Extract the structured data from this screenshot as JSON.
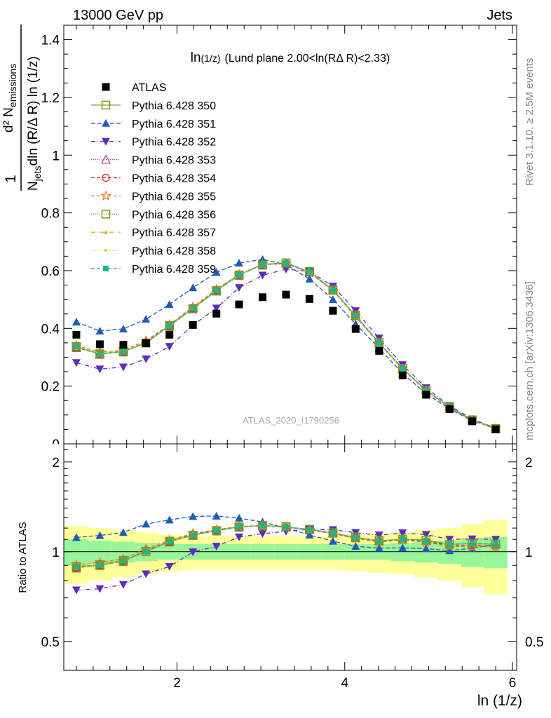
{
  "header": {
    "left": "13000 GeV pp",
    "right": "Jets"
  },
  "side_labels": {
    "rivet": "Rivet 3.1.10, ≥ 2.5M events",
    "mcplots": "mcplots.cern.ch [arXiv:1306.3436]"
  },
  "analysis_id": "ATLAS_2020_I1790256",
  "chart_data": [
    {
      "type": "line",
      "panel": "main",
      "title_main": "ln",
      "title_small": "(1/z)",
      "title_rest": "(Lund plane 2.00<ln(RΔ R)<2.33)",
      "ylabel_num": "d² N",
      "ylabel_num_sub": "emissions",
      "ylabel_den_a": "N",
      "ylabel_den_sub": "jets",
      "ylabel_den_b": "dln (R/Δ R) ln (1/z)",
      "ylabel_one": "1",
      "xlim": [
        0.65,
        6.05
      ],
      "ylim": [
        0,
        1.45
      ],
      "yticks": [
        0.2,
        0.4,
        0.6,
        0.8,
        1,
        1.2,
        1.4
      ],
      "ytick_labels": [
        "0.2",
        "0.4",
        "0.6",
        "0.8",
        "1",
        "1.2",
        "1.4"
      ],
      "ytick_partial": "0",
      "legend_position": "top-left",
      "x": [
        0.8,
        1.08,
        1.36,
        1.63,
        1.91,
        2.19,
        2.47,
        2.74,
        3.02,
        3.3,
        3.58,
        3.86,
        4.13,
        4.41,
        4.69,
        4.97,
        5.25,
        5.52,
        5.8
      ],
      "atlas": {
        "name": "ATLAS",
        "values": [
          0.378,
          0.345,
          0.343,
          0.349,
          0.378,
          0.412,
          0.451,
          0.483,
          0.508,
          0.517,
          0.502,
          0.461,
          0.398,
          0.322,
          0.237,
          0.17,
          0.12,
          0.078,
          0.05
        ]
      },
      "series": [
        {
          "name": "Pythia 6.428 350",
          "color": "#8c8c2a",
          "dash": "",
          "marker": "square-open",
          "values": [
            0.337,
            0.312,
            0.321,
            0.349,
            0.41,
            0.468,
            0.531,
            0.585,
            0.622,
            0.627,
            0.595,
            0.532,
            0.443,
            0.35,
            0.261,
            0.186,
            0.127,
            0.083,
            0.053
          ]
        },
        {
          "name": "Pythia 6.428 351",
          "color": "#1f5cb8",
          "dash": "6,3",
          "marker": "triangle-up",
          "values": [
            0.422,
            0.391,
            0.398,
            0.432,
            0.483,
            0.541,
            0.594,
            0.626,
            0.639,
            0.621,
            0.571,
            0.5,
            0.415,
            0.331,
            0.244,
            0.174,
            0.121,
            0.08,
            0.053
          ]
        },
        {
          "name": "Pythia 6.428 352",
          "color": "#5a2dbf",
          "dash": "6,3,1,3",
          "marker": "triangle-down",
          "values": [
            0.281,
            0.259,
            0.266,
            0.294,
            0.337,
            0.411,
            0.47,
            0.541,
            0.584,
            0.605,
            0.597,
            0.546,
            0.461,
            0.366,
            0.274,
            0.194,
            0.132,
            0.086,
            0.055
          ]
        },
        {
          "name": "Pythia 6.428 353",
          "color": "#c02a8a",
          "dash": "1,2",
          "marker": "triangle-open",
          "values": [
            0.335,
            0.311,
            0.32,
            0.353,
            0.41,
            0.47,
            0.533,
            0.587,
            0.62,
            0.625,
            0.596,
            0.532,
            0.444,
            0.35,
            0.261,
            0.185,
            0.127,
            0.083,
            0.053
          ]
        },
        {
          "name": "Pythia 6.428 354",
          "color": "#e02020",
          "dash": "5,3",
          "marker": "circle-open",
          "values": [
            0.334,
            0.312,
            0.319,
            0.352,
            0.409,
            0.471,
            0.532,
            0.585,
            0.621,
            0.624,
            0.594,
            0.531,
            0.443,
            0.349,
            0.26,
            0.184,
            0.126,
            0.082,
            0.052
          ]
        },
        {
          "name": "Pythia 6.428 355",
          "color": "#f07a1a",
          "dash": "5,3",
          "marker": "star-open",
          "values": [
            0.341,
            0.318,
            0.324,
            0.357,
            0.413,
            0.474,
            0.535,
            0.587,
            0.622,
            0.625,
            0.593,
            0.53,
            0.44,
            0.347,
            0.259,
            0.183,
            0.125,
            0.081,
            0.052
          ]
        },
        {
          "name": "Pythia 6.428 356",
          "color": "#7a9a1a",
          "dash": "1,2",
          "marker": "square-open",
          "values": [
            0.333,
            0.31,
            0.318,
            0.349,
            0.407,
            0.467,
            0.529,
            0.583,
            0.619,
            0.626,
            0.597,
            0.534,
            0.446,
            0.351,
            0.261,
            0.186,
            0.127,
            0.083,
            0.053
          ]
        },
        {
          "name": "Pythia 6.428 357",
          "color": "#d4b820",
          "dash": "6,3,1,3",
          "marker": "tri-small",
          "values": [
            0.336,
            0.313,
            0.321,
            0.351,
            0.409,
            0.469,
            0.532,
            0.586,
            0.621,
            0.626,
            0.596,
            0.533,
            0.444,
            0.35,
            0.261,
            0.185,
            0.127,
            0.083,
            0.053
          ]
        },
        {
          "name": "Pythia 6.428 358",
          "color": "#c8d830",
          "dash": "1,2",
          "marker": "dot-small",
          "values": [
            0.335,
            0.312,
            0.32,
            0.35,
            0.408,
            0.468,
            0.531,
            0.585,
            0.621,
            0.626,
            0.596,
            0.533,
            0.444,
            0.35,
            0.261,
            0.185,
            0.127,
            0.083,
            0.053
          ]
        },
        {
          "name": "Pythia 6.428 359",
          "color": "#1ab88a",
          "dash": "5,3",
          "marker": "square-filled",
          "values": [
            0.336,
            0.311,
            0.319,
            0.35,
            0.409,
            0.468,
            0.531,
            0.585,
            0.621,
            0.626,
            0.596,
            0.533,
            0.444,
            0.35,
            0.261,
            0.185,
            0.127,
            0.083,
            0.053
          ]
        }
      ]
    },
    {
      "type": "line",
      "panel": "ratio",
      "ylabel": "Ratio to ATLAS",
      "xlabel": "ln (1/z)",
      "xlim": [
        0.65,
        6.05
      ],
      "ylim": [
        0.4,
        2.3
      ],
      "scale": "log",
      "xticks": [
        2,
        4,
        6
      ],
      "xtick_labels": [
        "2",
        "4",
        "6"
      ],
      "yticks": [
        0.5,
        1,
        2
      ],
      "ytick_labels": [
        "0.5",
        "1",
        "2"
      ],
      "x_edges": [
        0.65,
        0.94,
        1.22,
        1.5,
        1.77,
        2.05,
        2.33,
        2.61,
        2.88,
        3.16,
        3.44,
        3.72,
        4.0,
        4.27,
        4.55,
        4.83,
        5.11,
        5.39,
        5.66,
        5.94
      ],
      "band_green_half": [
        0.1,
        0.09,
        0.08,
        0.07,
        0.06,
        0.06,
        0.06,
        0.06,
        0.06,
        0.06,
        0.06,
        0.06,
        0.06,
        0.06,
        0.07,
        0.08,
        0.09,
        0.11,
        0.12
      ],
      "band_yellow_half": [
        0.22,
        0.2,
        0.18,
        0.16,
        0.14,
        0.13,
        0.13,
        0.13,
        0.13,
        0.13,
        0.13,
        0.13,
        0.14,
        0.15,
        0.16,
        0.18,
        0.2,
        0.24,
        0.28
      ],
      "reference_line": 1
    }
  ]
}
